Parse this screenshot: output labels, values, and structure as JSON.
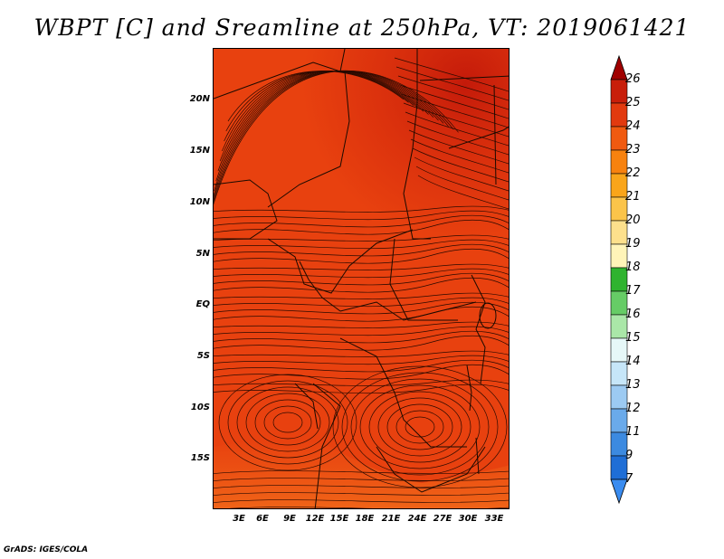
{
  "title": "WBPT [C] and Sreamline at 250hPa, VT: 2019061421",
  "credit": "GrADS: IGES/COLA",
  "map": {
    "lat_labels": [
      "20N",
      "15N",
      "10N",
      "5N",
      "EQ",
      "5S",
      "10S",
      "15S"
    ],
    "lon_labels": [
      "3E",
      "6E",
      "9E",
      "12E",
      "15E",
      "18E",
      "21E",
      "24E",
      "27E",
      "30E",
      "33E"
    ],
    "field_colors": {
      "base": "#e8410f",
      "warm": "#d62b0c",
      "hot": "#c41a0a",
      "cool": "#f06418"
    },
    "streamline_color": "#2a0a00",
    "border_color": "#1a0a00"
  },
  "colorbar": {
    "labels": [
      "26",
      "25",
      "24",
      "23",
      "22",
      "21",
      "20",
      "19",
      "18",
      "17",
      "16",
      "15",
      "14",
      "13",
      "12",
      "11",
      "9",
      "7"
    ],
    "colors": [
      "#a00000",
      "#c81e0a",
      "#e23a0f",
      "#f05a10",
      "#f7820f",
      "#f9a51a",
      "#fbc44a",
      "#fde08c",
      "#fff4b8",
      "#2fb32f",
      "#66cc66",
      "#aae7a8",
      "#e6f8f8",
      "#c6e6f8",
      "#9ccaf2",
      "#6aaaea",
      "#3c8ae0",
      "#1f6ed6",
      "#3a8cf0"
    ]
  }
}
